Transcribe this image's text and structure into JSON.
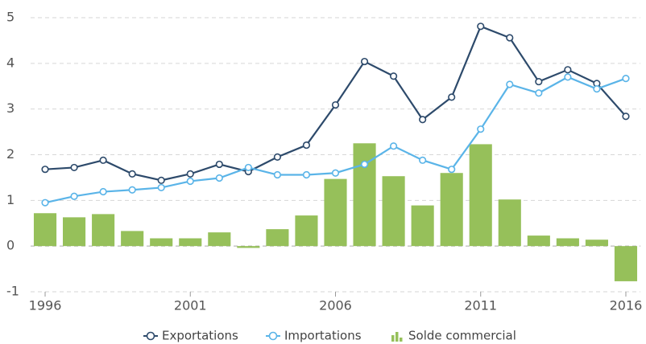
{
  "chart_data": {
    "type": "combo",
    "x": [
      1996,
      1997,
      1998,
      1999,
      2000,
      2001,
      2002,
      2003,
      2004,
      2005,
      2006,
      2007,
      2008,
      2009,
      2010,
      2011,
      2012,
      2013,
      2014,
      2015,
      2016
    ],
    "xlim": [
      1995.5,
      2016.5
    ],
    "xticks": [
      1996,
      2001,
      2006,
      2011,
      2016
    ],
    "ylim": [
      -1,
      5
    ],
    "yticks": [
      -1,
      0,
      1,
      2,
      3,
      4,
      5
    ],
    "grid": true,
    "legend": "bottom",
    "series": [
      {
        "name": "Exportations",
        "type": "line",
        "color": "#2d4a6b",
        "values": [
          1.68,
          1.72,
          1.88,
          1.58,
          1.44,
          1.58,
          1.79,
          1.63,
          1.95,
          2.21,
          3.09,
          4.04,
          3.72,
          2.77,
          3.26,
          4.81,
          4.56,
          3.6,
          3.86,
          3.56,
          2.84
        ]
      },
      {
        "name": "Importations",
        "type": "line",
        "color": "#5ab4e8",
        "values": [
          0.95,
          1.09,
          1.19,
          1.23,
          1.28,
          1.42,
          1.49,
          1.72,
          1.56,
          1.56,
          1.6,
          1.79,
          2.19,
          1.88,
          1.68,
          2.56,
          3.54,
          3.35,
          3.7,
          3.44,
          3.67
        ]
      },
      {
        "name": "Solde commercial",
        "type": "bar",
        "color": "#96c05a",
        "values": [
          0.72,
          0.63,
          0.7,
          0.33,
          0.17,
          0.17,
          0.3,
          -0.04,
          0.37,
          0.67,
          1.47,
          2.25,
          1.53,
          0.89,
          1.6,
          2.23,
          1.02,
          0.23,
          0.17,
          0.14,
          -0.77
        ]
      }
    ]
  }
}
